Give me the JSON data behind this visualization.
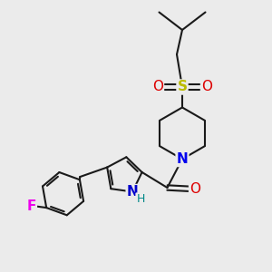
{
  "background_color": "#ebebeb",
  "bond_color": "#1a1a1a",
  "bond_width": 1.5,
  "atom_colors": {
    "N_pip": "#0000ee",
    "N_pyr": "#0000cc",
    "H_pyr": "#008888",
    "O_carbonyl": "#dd0000",
    "S": "#bbbb00",
    "O_sulf": "#dd0000",
    "F": "#ee00ee"
  },
  "figsize": [
    3.0,
    3.0
  ],
  "dpi": 100,
  "xlim": [
    0,
    10
  ],
  "ylim": [
    0,
    10
  ]
}
